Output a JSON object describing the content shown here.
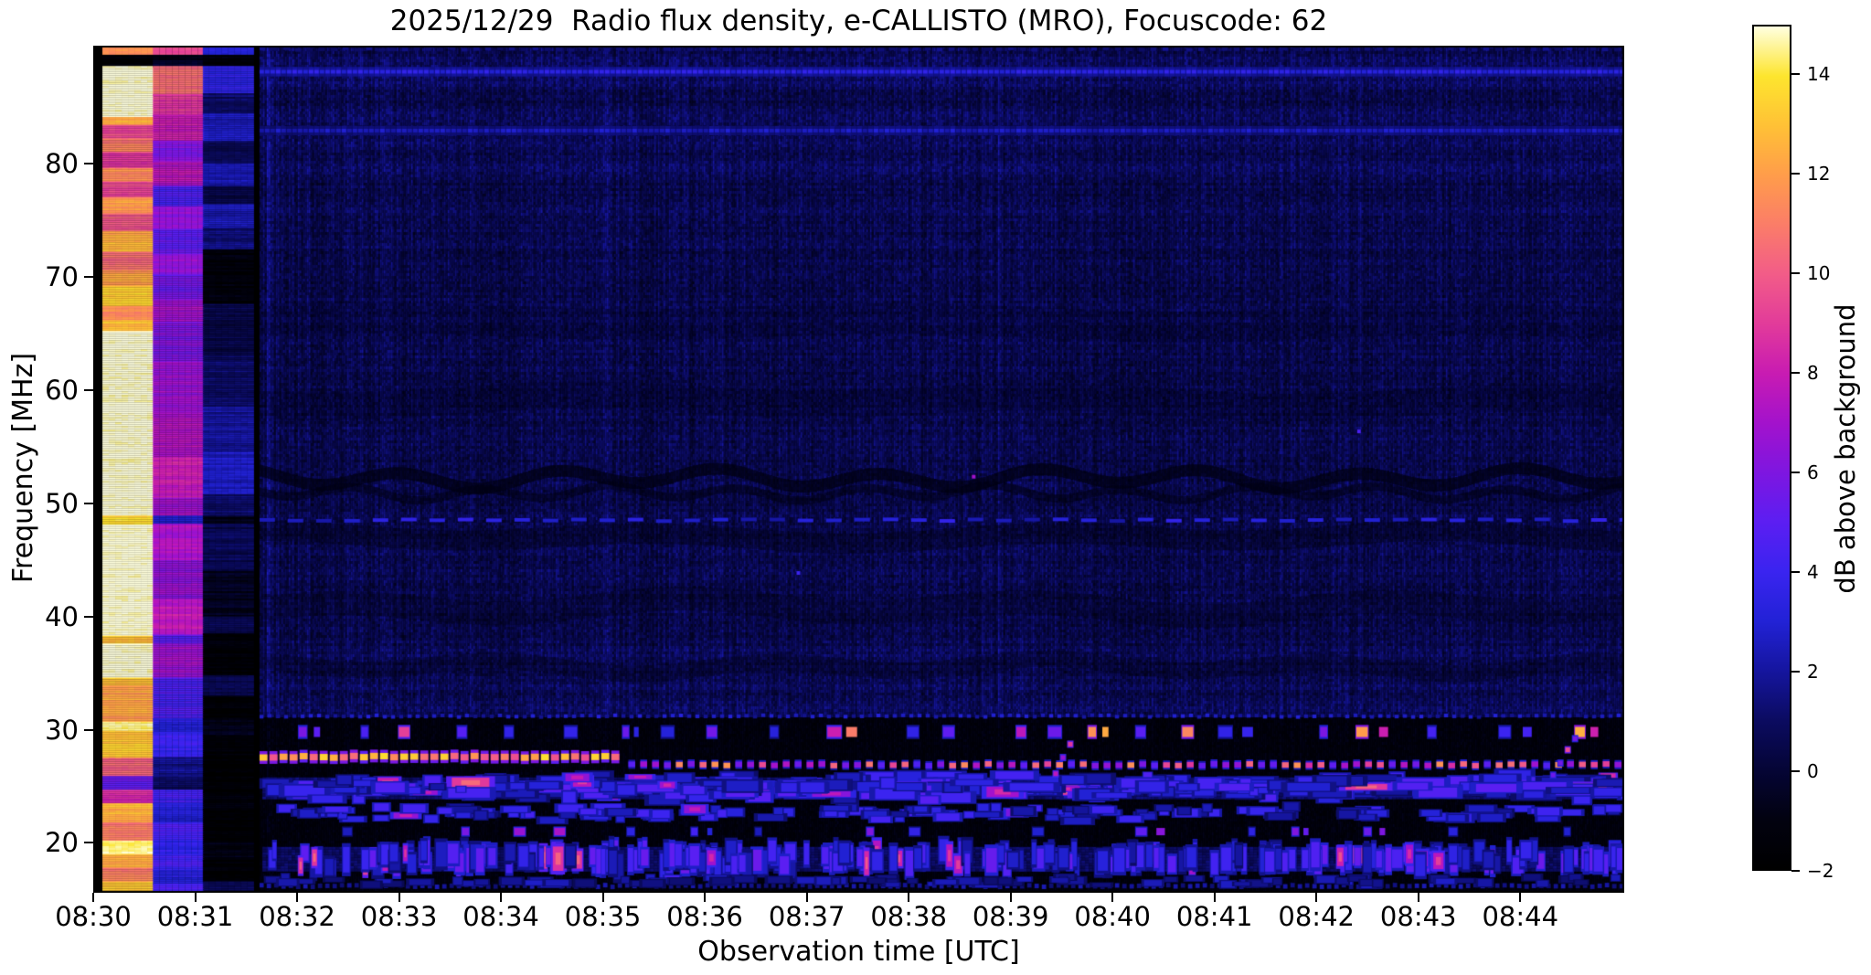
{
  "chart_data": {
    "type": "heatmap",
    "subtype": "radio-spectrogram",
    "title": "2025/12/29  Radio flux density, e-CALLISTO (MRO), Focuscode: 62",
    "x_axis": {
      "label": "Observation time [UTC]",
      "tick_labels": [
        "08:30",
        "08:31",
        "08:32",
        "08:33",
        "08:34",
        "08:35",
        "08:36",
        "08:37",
        "08:38",
        "08:39",
        "08:40",
        "08:41",
        "08:42",
        "08:43",
        "08:44"
      ],
      "tick_minutes": [
        0,
        1,
        2,
        3,
        4,
        5,
        6,
        7,
        8,
        9,
        10,
        11,
        12,
        13,
        14
      ],
      "range_minutes": [
        0,
        15.02
      ],
      "start_time": "08:30",
      "end_time": "08:45"
    },
    "y_axis": {
      "label": "Frequency [MHz]",
      "tick_labels": [
        "80",
        "70",
        "60",
        "50",
        "40",
        "30",
        "20"
      ],
      "tick_values": [
        80,
        70,
        60,
        50,
        40,
        30,
        20
      ],
      "range_mhz": [
        15.6,
        90.4
      ]
    },
    "colorbar": {
      "label": "dB above background",
      "tick_labels": [
        "14",
        "12",
        "10",
        "8",
        "6",
        "4",
        "2",
        "0",
        "−2"
      ],
      "tick_values": [
        14,
        12,
        10,
        8,
        6,
        4,
        2,
        0,
        -2
      ],
      "range_db": [
        -2,
        15
      ],
      "stops": [
        [
          -2,
          "#000000"
        ],
        [
          -1,
          "#020210"
        ],
        [
          0,
          "#050536"
        ],
        [
          1,
          "#0b0b60"
        ],
        [
          2,
          "#15159e"
        ],
        [
          3,
          "#2222d6"
        ],
        [
          4,
          "#3a24f0"
        ],
        [
          5,
          "#5c1ef2"
        ],
        [
          6,
          "#7e16e0"
        ],
        [
          7,
          "#a312cc"
        ],
        [
          8,
          "#c81bb2"
        ],
        [
          9,
          "#e23b9a"
        ],
        [
          10,
          "#f25c88"
        ],
        [
          11,
          "#fb7d68"
        ],
        [
          12,
          "#ff9d4a"
        ],
        [
          13,
          "#ffc136"
        ],
        [
          14,
          "#fde52e"
        ],
        [
          15,
          "#ffffe0"
        ]
      ]
    },
    "seed": 20251229,
    "background": {
      "upper_base_db": 0.45,
      "lower_base_db": -1.3,
      "split_mhz": 31.3,
      "col_noise_db": 0.5,
      "cell_noise_db": 0.85,
      "row_texture_db": 0.22
    },
    "faint_rows": [
      [
        89.3,
        0.5
      ],
      [
        87.4,
        0.5
      ],
      [
        84.1,
        0.5
      ],
      [
        81.7,
        0.4
      ],
      [
        79.8,
        0.35
      ],
      [
        76.3,
        0.3
      ],
      [
        73.0,
        0.2
      ],
      [
        66.0,
        0.15
      ],
      [
        56.0,
        0.15
      ],
      [
        44.5,
        0.2
      ],
      [
        41.0,
        0.2
      ],
      [
        36.8,
        0.25
      ],
      [
        34.0,
        0.3
      ],
      [
        32.3,
        0.4
      ],
      [
        16.4,
        0.5
      ]
    ],
    "bright_rows": [
      {
        "f": 88.1,
        "th": 4,
        "v0": 2.8,
        "v1": 3.8
      },
      {
        "f": 82.9,
        "th": 4,
        "v0": 2.0,
        "v1": 3.0
      }
    ],
    "waves": [
      {
        "f": 52.2,
        "amp": 8,
        "per": 175,
        "th": 13,
        "alpha": 0.75
      },
      {
        "f": 50.9,
        "amp": 6,
        "per": 140,
        "th": 9,
        "alpha": 0.55
      },
      {
        "f": 47.0,
        "amp": 5,
        "per": 430,
        "th": 22,
        "alpha": 0.35
      },
      {
        "f": 40.8,
        "amp": 7,
        "per": 380,
        "th": 26,
        "alpha": 0.3
      },
      {
        "f": 35.6,
        "amp": 6,
        "per": 300,
        "th": 18,
        "alpha": 0.28
      },
      {
        "f": 59.0,
        "amp": 5,
        "per": 520,
        "th": 30,
        "alpha": 0.22
      },
      {
        "f": 66.0,
        "amp": 4,
        "per": 600,
        "th": 34,
        "alpha": 0.18
      }
    ],
    "dotted_lines": [
      {
        "f": 90.1,
        "t0": 1.63,
        "t1": 15.0,
        "th": 4,
        "period": 13,
        "duty": 0.5,
        "v0": 0.9,
        "v1": 1.8
      },
      {
        "f": 48.5,
        "t0": 1.63,
        "t1": 15.0,
        "th": 4,
        "period": 31,
        "duty": 0.55,
        "v0": 2.0,
        "v1": 3.8
      },
      {
        "f": 31.2,
        "t0": 1.63,
        "t1": 15.0,
        "th": 4,
        "period": 9,
        "duty": 0.5,
        "v0": 1.6,
        "v1": 3.2
      },
      {
        "f": 16.2,
        "t0": 1.63,
        "t1": 15.0,
        "th": 5,
        "period": 8,
        "duty": 0.6,
        "v0": 1.2,
        "v1": 2.4
      }
    ],
    "dash_rows": [
      {
        "f": 29.8,
        "t0": 1.66,
        "t1": 15.0,
        "th": 11,
        "gap": 42,
        "w0": 6,
        "w1": 15,
        "pops": [
          [
            0.55,
            3,
            6
          ],
          [
            0.45,
            7.5,
            13
          ]
        ]
      },
      {
        "f": 21.0,
        "t0": 1.66,
        "t1": 15.0,
        "th": 8,
        "gap": 75,
        "w0": 6,
        "w1": 12,
        "pops": [
          [
            0.6,
            2.5,
            4.5
          ],
          [
            0.4,
            5,
            7.5
          ]
        ]
      }
    ],
    "blob_bands": [
      {
        "f": 24.9,
        "spread": 1.2,
        "t0": 1.66,
        "t1": 15.0,
        "base": 1.1,
        "baseTh": 22,
        "n": 330,
        "w0": 8,
        "w1": 48,
        "h0": 5,
        "h1": 12,
        "v0": 2,
        "v1": 5,
        "bp": 0.07,
        "bv0": 6,
        "bv1": 9.5
      },
      {
        "f": 22.6,
        "spread": 0.7,
        "t0": 1.66,
        "t1": 15.0,
        "base": 0,
        "baseTh": 0,
        "n": 150,
        "w0": 8,
        "w1": 30,
        "h0": 5,
        "h1": 9,
        "v0": 1.8,
        "v1": 4.4,
        "bp": 0.03,
        "bv0": 5,
        "bv1": 7
      },
      {
        "f": 18.6,
        "spread": 0.9,
        "t0": 1.66,
        "t1": 15.0,
        "base": 0.9,
        "baseTh": 26,
        "n": 300,
        "w0": 4,
        "w1": 12,
        "h0": 16,
        "h1": 28,
        "v0": 2,
        "v1": 5.5,
        "bp": 0.08,
        "bv0": 6.5,
        "bv1": 9
      },
      {
        "f": 16.6,
        "spread": 0.5,
        "t0": 1.66,
        "t1": 15.0,
        "base": 0,
        "baseTh": 0,
        "n": 90,
        "w0": 8,
        "w1": 26,
        "h0": 4,
        "h1": 8,
        "v0": 1.2,
        "v1": 2.8,
        "bp": 0.01,
        "bv0": 4,
        "bv1": 5
      }
    ],
    "main_lines": [
      {
        "f": 27.6,
        "t0": 1.63,
        "t1": 5.16,
        "th": 7,
        "haloTh": 14,
        "period": 11,
        "duty": 0.8,
        "v0": 9.5,
        "v1": 14.5,
        "haloV": 5.5
      },
      {
        "f": 26.9,
        "t0": 5.25,
        "t1": 14.95,
        "th": 6,
        "haloTh": 10,
        "period": 13,
        "duty": 0.58,
        "v0": 4.5,
        "v1": 7.5,
        "haloV": 2.5,
        "bp": 0.4,
        "bv0": 8.5,
        "bv1": 12
      }
    ],
    "drifts": [
      {
        "t0": 9.42,
        "f0": 26.2,
        "t1": 9.62,
        "f1": 29.6,
        "v0": 5,
        "v1": 9,
        "dot": 5
      },
      {
        "t0": 14.3,
        "f0": 26.0,
        "t1": 14.52,
        "f1": 29.4,
        "v0": 5,
        "v1": 10,
        "dot": 5
      }
    ],
    "specks": [
      [
        8.62,
        52.5,
        7
      ],
      [
        12.4,
        56.5,
        4.5
      ],
      [
        6.9,
        44.0,
        4
      ]
    ],
    "calibration": {
      "pre_black": [
        0,
        0.09
      ],
      "gap_black": [
        1.57,
        1.63
      ],
      "columns": [
        {
          "t0": 0.09,
          "t1": 0.585,
          "stripes": [
            [
              90.4,
              89.6,
              12
            ],
            [
              89.6,
              88.6,
              -1.5
            ],
            [
              88.6,
              84.1,
              15
            ],
            [
              84.1,
              83.4,
              12.5
            ],
            [
              83.4,
              82.2,
              9.5
            ],
            [
              82.2,
              81.0,
              11
            ],
            [
              81.0,
              79.6,
              9
            ],
            [
              79.6,
              78.4,
              11.5
            ],
            [
              78.4,
              77.0,
              9.5
            ],
            [
              77.0,
              75.6,
              12
            ],
            [
              75.6,
              74.0,
              10
            ],
            [
              74.0,
              72.2,
              12.5
            ],
            [
              72.2,
              70.6,
              10.5
            ],
            [
              70.6,
              69.2,
              12
            ],
            [
              69.2,
              67.4,
              13.5
            ],
            [
              67.4,
              66.2,
              11.5
            ],
            [
              66.2,
              65.2,
              13
            ],
            [
              65.2,
              48.9,
              15
            ],
            [
              48.9,
              48.1,
              13.5
            ],
            [
              48.1,
              38.3,
              15
            ],
            [
              38.3,
              37.6,
              13
            ],
            [
              37.6,
              34.6,
              15
            ],
            [
              34.6,
              33.9,
              13
            ],
            [
              33.9,
              30.7,
              12
            ],
            [
              30.7,
              29.9,
              14.5
            ],
            [
              29.9,
              27.5,
              13
            ],
            [
              27.5,
              25.9,
              10.5
            ],
            [
              25.9,
              24.7,
              5
            ],
            [
              24.7,
              23.5,
              8.5
            ],
            [
              23.5,
              21.8,
              12.5
            ],
            [
              21.8,
              20.2,
              11
            ],
            [
              20.2,
              19.0,
              14.5
            ],
            [
              19.0,
              17.8,
              12.5
            ],
            [
              17.8,
              16.6,
              11
            ],
            [
              16.6,
              15.6,
              13.5
            ]
          ]
        },
        {
          "t0": 0.585,
          "t1": 1.075,
          "stripes": [
            [
              90.4,
              89.6,
              9.5
            ],
            [
              89.6,
              88.6,
              -0.5
            ],
            [
              88.6,
              86.1,
              10.5
            ],
            [
              86.1,
              84.3,
              9
            ],
            [
              84.3,
              82.0,
              8
            ],
            [
              82.0,
              80.2,
              6
            ],
            [
              80.2,
              78.0,
              7.5
            ],
            [
              78.0,
              76.2,
              4.5
            ],
            [
              76.2,
              74.2,
              6.5
            ],
            [
              74.2,
              72.0,
              5
            ],
            [
              72.0,
              70.2,
              6.5
            ],
            [
              70.2,
              68.0,
              5.5
            ],
            [
              68.0,
              66.0,
              7
            ],
            [
              66.0,
              62.5,
              6
            ],
            [
              62.5,
              58.0,
              6.8
            ],
            [
              58.0,
              54.0,
              7.5
            ],
            [
              54.0,
              50.5,
              8
            ],
            [
              50.5,
              48.9,
              7
            ],
            [
              48.9,
              48.2,
              3
            ],
            [
              48.2,
              45.0,
              7.2
            ],
            [
              45.0,
              41.5,
              6.5
            ],
            [
              41.5,
              38.4,
              7.8
            ],
            [
              38.4,
              37.6,
              5
            ],
            [
              37.6,
              34.6,
              6.8
            ],
            [
              34.6,
              31.0,
              4.5
            ],
            [
              31.0,
              29.8,
              3.2
            ],
            [
              29.8,
              27.6,
              3.8
            ],
            [
              27.6,
              25.9,
              1.8
            ],
            [
              25.9,
              24.7,
              0.8
            ],
            [
              24.7,
              23.5,
              4
            ],
            [
              23.5,
              21.8,
              3
            ],
            [
              21.8,
              20.2,
              4.5
            ],
            [
              20.2,
              19.0,
              3.5
            ],
            [
              19.0,
              17.6,
              4.2
            ],
            [
              17.6,
              16.4,
              3.2
            ],
            [
              16.4,
              15.6,
              4.5
            ]
          ]
        },
        {
          "t0": 1.075,
          "t1": 1.57,
          "stripes": [
            [
              90.4,
              89.6,
              3
            ],
            [
              89.6,
              88.6,
              -1.2
            ],
            [
              88.6,
              86.2,
              3.4
            ],
            [
              86.2,
              84.4,
              1
            ],
            [
              84.4,
              82.0,
              2.6
            ],
            [
              82.0,
              80.0,
              0.6
            ],
            [
              80.0,
              78.0,
              2.4
            ],
            [
              78.0,
              76.4,
              0.4
            ],
            [
              76.4,
              74.4,
              2.6
            ],
            [
              74.4,
              72.4,
              1.4
            ],
            [
              72.4,
              67.6,
              -1.4
            ],
            [
              67.6,
              63.0,
              0.4
            ],
            [
              63.0,
              58.5,
              1.2
            ],
            [
              58.5,
              54.5,
              2.0
            ],
            [
              54.5,
              50.8,
              2.6
            ],
            [
              50.8,
              48.9,
              1.2
            ],
            [
              48.9,
              48.2,
              -0.8
            ],
            [
              48.2,
              44.0,
              0.6
            ],
            [
              44.0,
              40.0,
              -0.6
            ],
            [
              40.0,
              38.5,
              0.8
            ],
            [
              38.5,
              34.8,
              -1.5
            ],
            [
              34.8,
              33.0,
              0.5
            ],
            [
              33.0,
              31.0,
              -1.6
            ],
            [
              31.0,
              29.5,
              -0.8
            ],
            [
              29.5,
              27.0,
              -1.6
            ],
            [
              27.0,
              24.5,
              -1.8
            ],
            [
              24.5,
              23.0,
              -1.2
            ],
            [
              23.0,
              20.0,
              -1.8
            ],
            [
              20.0,
              18.5,
              -1.0
            ],
            [
              18.5,
              16.6,
              -1.8
            ],
            [
              16.6,
              15.6,
              0.8
            ]
          ]
        }
      ]
    }
  }
}
